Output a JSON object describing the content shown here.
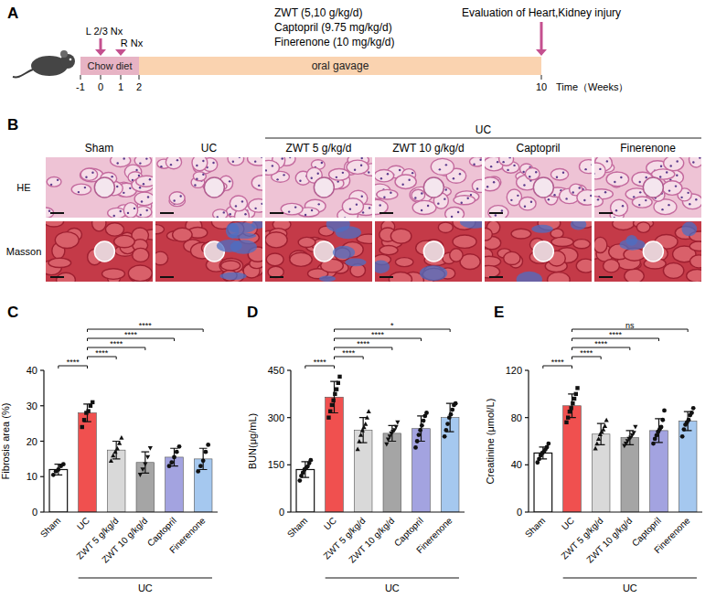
{
  "panel_a": {
    "panel_label": "A",
    "diet": "Chow diet",
    "treatment": "oral gavage",
    "surgeries": [
      "L 2/3 Nx",
      "R Nx"
    ],
    "drugs": [
      "ZWT (5,10 g/kg/d)",
      "Captopril (9.75 mg/kg/d)",
      "Finerenone (10 mg/kg/d)"
    ],
    "endpoint": "Evaluation of Heart,Kidney injury",
    "time_ticks": [
      -1,
      0,
      1,
      2,
      10
    ],
    "time_label": "Time（Weeks）"
  },
  "panel_b": {
    "panel_label": "B",
    "group_label": "UC",
    "columns": [
      "Sham",
      "UC",
      "ZWT 5 g/kg/d",
      "ZWT 10 g/kg/d",
      "Captopril",
      "Finerenone"
    ],
    "rows": [
      "HE",
      "Masson"
    ]
  },
  "chart_data": [
    {
      "type": "bar",
      "panel_label": "C",
      "y_label": "Fibrosis area (%)",
      "group_label": "UC",
      "categories": [
        "Sham",
        "UC",
        "ZWT 5 g/kg/d",
        "ZWT 10 g/kg/d",
        "Captopril",
        "Finerenone"
      ],
      "values": [
        12,
        28,
        17.5,
        14,
        15.5,
        15
      ],
      "errors": [
        1.5,
        2.5,
        2.5,
        3,
        2.5,
        3
      ],
      "points": [
        [
          10.5,
          11.5,
          12,
          13,
          13.5
        ],
        [
          24,
          26,
          28,
          28.5,
          30,
          31
        ],
        [
          14.5,
          16,
          17,
          18,
          19.5,
          21
        ],
        [
          10.5,
          12,
          13.5,
          15.5,
          18
        ],
        [
          13,
          14,
          15.5,
          17,
          18.5
        ],
        [
          11.5,
          13,
          14.5,
          17,
          19
        ]
      ],
      "colors": [
        "#ffffff",
        "#f0504f",
        "#d9d9d9",
        "#a5a5a5",
        "#a3a3e0",
        "#a5c8ef"
      ],
      "ylim": [
        0,
        40
      ],
      "yticks": [
        0,
        10,
        20,
        30,
        40
      ],
      "comparisons": [
        {
          "from": 0,
          "to": 1,
          "label": "****"
        },
        {
          "from": 1,
          "to": 2,
          "label": "****"
        },
        {
          "from": 1,
          "to": 3,
          "label": "****"
        },
        {
          "from": 1,
          "to": 4,
          "label": "****"
        },
        {
          "from": 1,
          "to": 5,
          "label": "****"
        }
      ]
    },
    {
      "type": "bar",
      "panel_label": "D",
      "y_label": "BUN(μg/mL)",
      "group_label": "UC",
      "categories": [
        "Sham",
        "UC",
        "ZWT 5 g/kg/d",
        "ZWT 10 g/kg/d",
        "Captopril",
        "Finerenone"
      ],
      "values": [
        135,
        365,
        260,
        250,
        265,
        300
      ],
      "errors": [
        25,
        50,
        40,
        25,
        40,
        45
      ],
      "points": [
        [
          100,
          115,
          125,
          135,
          140,
          145,
          155,
          165
        ],
        [
          300,
          320,
          340,
          355,
          375,
          390,
          410,
          430
        ],
        [
          200,
          225,
          245,
          260,
          270,
          280,
          300,
          320
        ],
        [
          215,
          230,
          240,
          250,
          255,
          260,
          270,
          285
        ],
        [
          205,
          225,
          245,
          260,
          275,
          290,
          305,
          315
        ],
        [
          240,
          260,
          280,
          300,
          310,
          325,
          340,
          345
        ]
      ],
      "colors": [
        "#ffffff",
        "#f0504f",
        "#d9d9d9",
        "#a5a5a5",
        "#a3a3e0",
        "#a5c8ef"
      ],
      "ylim": [
        0,
        450
      ],
      "yticks": [
        0,
        150,
        300,
        450
      ],
      "comparisons": [
        {
          "from": 0,
          "to": 1,
          "label": "****"
        },
        {
          "from": 1,
          "to": 2,
          "label": "****"
        },
        {
          "from": 1,
          "to": 3,
          "label": "****"
        },
        {
          "from": 1,
          "to": 4,
          "label": "****"
        },
        {
          "from": 1,
          "to": 5,
          "label": "*"
        }
      ]
    },
    {
      "type": "bar",
      "panel_label": "E",
      "y_label": "Creatinine (μmol/L)",
      "group_label": "UC",
      "categories": [
        "Sham",
        "UC",
        "ZWT 5 g/kg/d",
        "ZWT 10 g/kg/d",
        "Captopril",
        "Finerenone"
      ],
      "values": [
        50,
        90,
        66,
        63,
        69,
        77
      ],
      "errors": [
        5,
        10,
        9,
        6,
        10,
        8
      ],
      "points": [
        [
          42,
          45,
          48,
          50,
          51,
          53,
          55,
          58
        ],
        [
          76,
          80,
          85,
          88,
          92,
          96,
          100,
          105
        ],
        [
          54,
          58,
          62,
          66,
          68,
          70,
          73,
          78
        ],
        [
          56,
          58,
          60,
          62,
          63,
          65,
          67,
          72
        ],
        [
          58,
          62,
          65,
          68,
          70,
          72,
          78,
          86
        ],
        [
          64,
          70,
          74,
          76,
          78,
          82,
          84,
          88
        ]
      ],
      "colors": [
        "#ffffff",
        "#f0504f",
        "#d9d9d9",
        "#a5a5a5",
        "#a3a3e0",
        "#a5c8ef"
      ],
      "ylim": [
        0,
        120
      ],
      "yticks": [
        0,
        40,
        80,
        120
      ],
      "comparisons": [
        {
          "from": 0,
          "to": 1,
          "label": "****"
        },
        {
          "from": 1,
          "to": 2,
          "label": "****"
        },
        {
          "from": 1,
          "to": 3,
          "label": "****"
        },
        {
          "from": 1,
          "to": 4,
          "label": "****"
        },
        {
          "from": 1,
          "to": 5,
          "label": "ns"
        }
      ]
    }
  ]
}
